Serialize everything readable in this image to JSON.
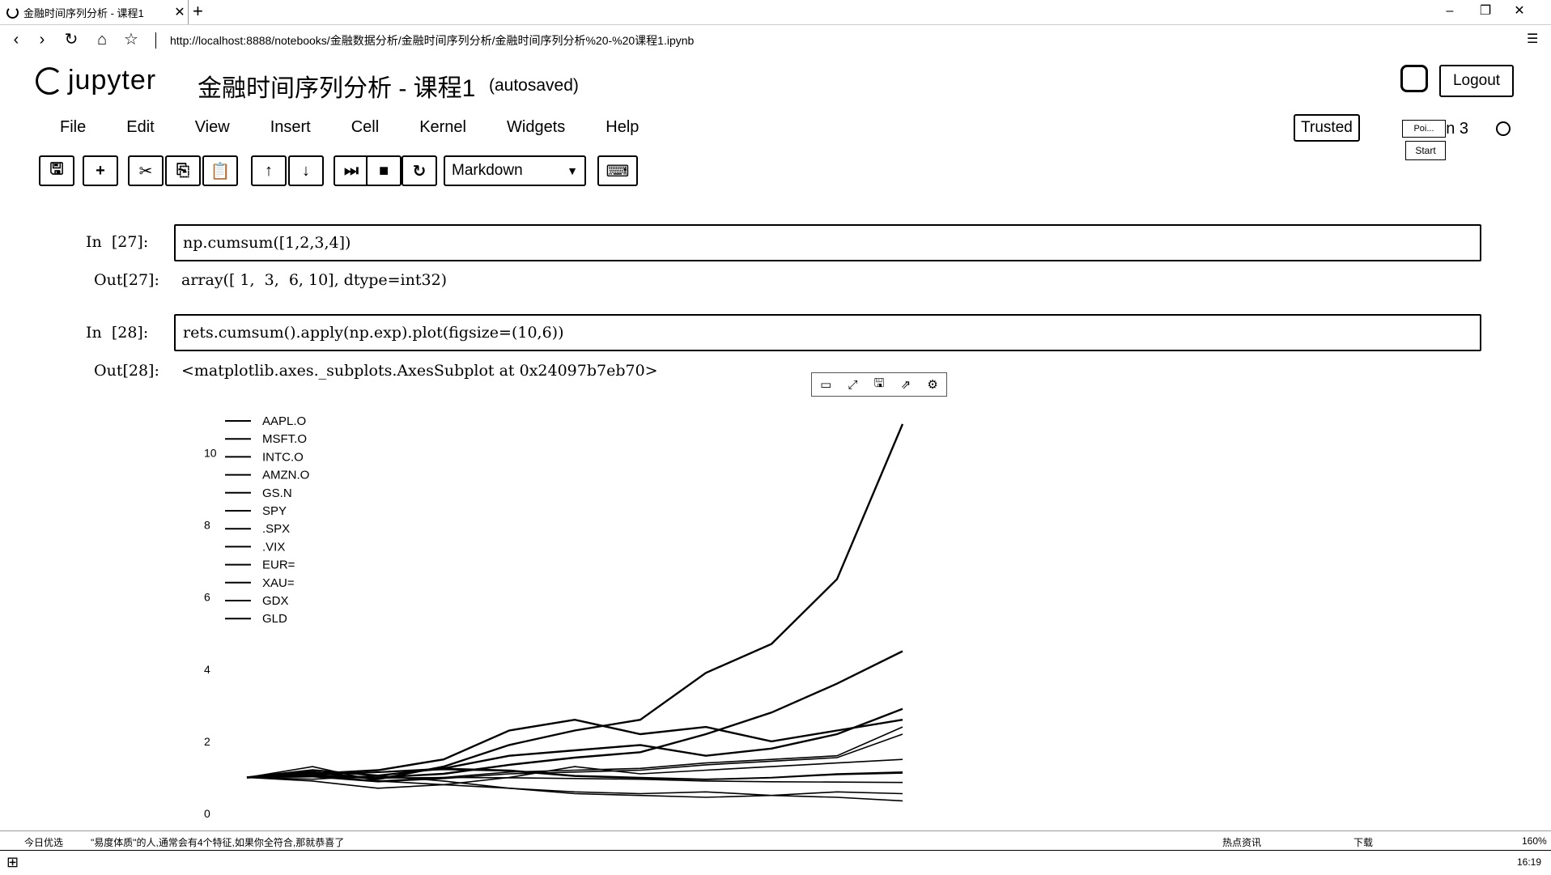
{
  "browser": {
    "tab_title": "金融时间序列分析 - 课程1",
    "tab_close": "✕",
    "new_tab": "+",
    "url": "http://localhost:8888/notebooks/金融数据分析/金融时间序列分析/金融时间序列分析%20-%20课程1.ipynb",
    "back": "‹",
    "forward": "›",
    "reload": "↻",
    "home": "⌂",
    "star": "☆",
    "min": "–",
    "max": "❐",
    "close": "✕",
    "menu": "☰"
  },
  "jupyter": {
    "logo_text": "jupyter",
    "notebook_title": "金融时间序列分析 - 课程1",
    "autosaved": "(autosaved)",
    "logout": "Logout",
    "trusted": "Trusted",
    "kernel_name": "hon 3",
    "poi_label": "Poi...",
    "start_label": "Start",
    "menus": [
      "File",
      "Edit",
      "View",
      "Insert",
      "Cell",
      "Kernel",
      "Widgets",
      "Help"
    ],
    "cell_type": "Markdown"
  },
  "toolbar": {
    "save_icon": "🖫",
    "add_icon": "+",
    "cut_icon": "✂",
    "copy_icon": "⎘",
    "paste_icon": "📋",
    "up_icon": "↑",
    "down_icon": "↓",
    "run_icon": "⏭",
    "stop_icon": "■",
    "restart_icon": "↻",
    "keyboard_icon": "⌨"
  },
  "cells": [
    {
      "in_prompt": "In  [27]:",
      "code": "np.cumsum([1,2,3,4])",
      "out_prompt": "Out[27]:",
      "output": "array([ 1,  3,  6, 10], dtype=int32)"
    },
    {
      "in_prompt": "In  [28]:",
      "code": "rets.cumsum().apply(np.exp).plot(figsize=(10,6))",
      "out_prompt": "Out[28]:",
      "output": "<matplotlib.axes._subplots.AxesSubplot at 0x24097b7eb70>"
    }
  ],
  "figure_tools": [
    "▭",
    "⤢",
    "🖫",
    "⇗",
    "⚙"
  ],
  "chart_data": {
    "type": "line",
    "yticks": [
      "10",
      "8",
      "6",
      "4",
      "2",
      "0"
    ],
    "ylim": [
      0,
      11
    ],
    "legend_position": "upper-left",
    "x": [
      0,
      1,
      2,
      3,
      4,
      5,
      6,
      7,
      8,
      9,
      10
    ],
    "series": [
      {
        "name": "AAPL.O",
        "values": [
          1.0,
          1.15,
          0.95,
          1.3,
          1.9,
          2.3,
          2.6,
          3.9,
          4.7,
          6.5,
          10.8
        ]
      },
      {
        "name": "MSFT.O",
        "values": [
          1.0,
          1.05,
          1.0,
          1.1,
          1.35,
          1.55,
          1.7,
          2.2,
          2.8,
          3.6,
          4.5
        ]
      },
      {
        "name": "INTC.O",
        "values": [
          1.0,
          1.2,
          1.05,
          1.25,
          1.6,
          1.75,
          1.9,
          1.6,
          1.8,
          2.2,
          2.9
        ]
      },
      {
        "name": "AMZN.O",
        "values": [
          1.0,
          1.1,
          1.2,
          1.5,
          2.3,
          2.6,
          2.2,
          2.4,
          2.0,
          2.3,
          2.6
        ]
      },
      {
        "name": "GS.N",
        "values": [
          1.0,
          0.9,
          0.7,
          0.8,
          1.0,
          1.3,
          1.1,
          1.2,
          1.3,
          1.4,
          1.5
        ]
      },
      {
        "name": "SPY",
        "values": [
          1.0,
          1.05,
          0.9,
          1.0,
          1.15,
          1.2,
          1.25,
          1.4,
          1.5,
          1.6,
          2.4
        ]
      },
      {
        "name": ".SPX",
        "values": [
          1.0,
          1.02,
          0.88,
          0.97,
          1.1,
          1.15,
          1.2,
          1.35,
          1.45,
          1.55,
          2.2
        ]
      },
      {
        "name": ".VIX",
        "values": [
          1.0,
          1.3,
          0.9,
          0.8,
          0.7,
          0.6,
          0.55,
          0.6,
          0.5,
          0.45,
          0.35
        ]
      },
      {
        "name": "EUR=",
        "values": [
          1.0,
          1.02,
          0.98,
          1.0,
          0.99,
          0.97,
          0.95,
          0.9,
          0.88,
          0.87,
          0.86
        ]
      },
      {
        "name": "XAU=",
        "values": [
          1.0,
          1.08,
          1.15,
          1.25,
          1.2,
          1.05,
          1.0,
          0.95,
          1.0,
          1.1,
          1.15
        ]
      },
      {
        "name": "GDX",
        "values": [
          1.0,
          0.95,
          1.05,
          0.9,
          0.7,
          0.55,
          0.5,
          0.45,
          0.5,
          0.6,
          0.55
        ]
      },
      {
        "name": "GLD",
        "values": [
          1.0,
          1.07,
          1.14,
          1.22,
          1.18,
          1.03,
          0.98,
          0.94,
          0.99,
          1.08,
          1.12
        ]
      }
    ]
  },
  "status": {
    "left1": "今日优选",
    "left2": "\"易度体质\"的人,通常会有4个特征,如果你全符合,那就恭喜了",
    "right1": "热点资讯",
    "right2": "下载",
    "zoom": "160%",
    "time": "16:19"
  }
}
